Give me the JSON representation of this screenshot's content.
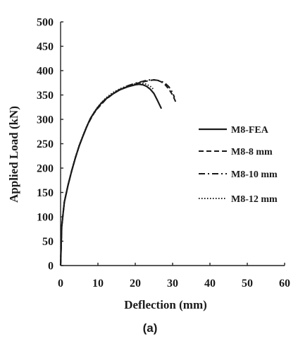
{
  "chart_data": {
    "type": "line",
    "xlabel": "Deflection (mm)",
    "ylabel": "Applied Load (kN)",
    "xlim": [
      0,
      60
    ],
    "ylim": [
      0,
      500
    ],
    "xticks": [
      0,
      10,
      20,
      30,
      40,
      50,
      60
    ],
    "yticks": [
      0,
      50,
      100,
      150,
      200,
      250,
      300,
      350,
      400,
      450,
      500
    ],
    "grid": false,
    "legend_position": "right",
    "caption": "(a)",
    "series": [
      {
        "name": "M8-FEA",
        "style": "solid",
        "x": [
          0,
          0.3,
          1,
          2,
          3,
          4,
          5,
          6,
          7,
          8,
          9,
          10,
          11,
          12,
          13,
          14,
          15,
          16,
          17,
          18,
          19,
          20,
          21,
          22,
          23,
          24,
          25,
          26,
          27
        ],
        "y": [
          0,
          80,
          130,
          165,
          195,
          222,
          246,
          266,
          285,
          302,
          314,
          325,
          334,
          341,
          347,
          352,
          357,
          361,
          364,
          367,
          369,
          371,
          372,
          371,
          368,
          362,
          353,
          338,
          322
        ]
      },
      {
        "name": "M8-8 mm",
        "style": "dashed",
        "x": [
          0,
          0.3,
          1,
          2,
          3,
          4,
          5,
          6,
          7,
          8,
          9,
          10,
          12,
          14,
          16,
          18,
          20,
          22,
          24,
          25,
          26,
          27,
          28,
          29,
          30,
          31
        ],
        "y": [
          0,
          80,
          130,
          165,
          195,
          222,
          246,
          266,
          285,
          300,
          313,
          323,
          340,
          352,
          361,
          368,
          373,
          377,
          380,
          381,
          380,
          377,
          371,
          362,
          350,
          333
        ]
      },
      {
        "name": "M8-10 mm",
        "style": "dashdot",
        "x": [
          0,
          0.3,
          1,
          2,
          3,
          4,
          5,
          6,
          7,
          8,
          9,
          10,
          12,
          14,
          16,
          18,
          20,
          22,
          23,
          24,
          25,
          26,
          27,
          28,
          29,
          30,
          30.5
        ],
        "y": [
          0,
          80,
          130,
          165,
          195,
          222,
          246,
          266,
          285,
          301,
          314,
          324,
          341,
          353,
          362,
          369,
          374,
          378,
          380,
          381,
          381,
          380,
          378,
          374,
          367,
          355,
          345
        ]
      },
      {
        "name": "M8-12 mm",
        "style": "dotted",
        "x": [
          0,
          0.3,
          1,
          2,
          3,
          4,
          5,
          6,
          7,
          8,
          9,
          10,
          12,
          14,
          16,
          18,
          20,
          21,
          22,
          23,
          24,
          25
        ],
        "y": [
          0,
          80,
          130,
          166,
          196,
          223,
          247,
          267,
          286,
          302,
          315,
          326,
          343,
          355,
          363,
          369,
          373,
          374,
          374,
          372,
          368,
          361
        ]
      }
    ]
  }
}
